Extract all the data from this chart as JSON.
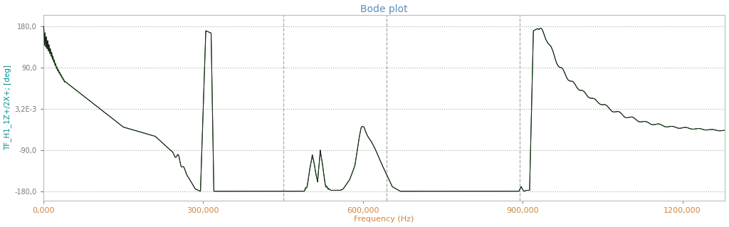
{
  "title": "Bode plot",
  "ylabel": "TF_H1_1Z+/2X+; [deg]",
  "xlabel": "Frequency (Hz)",
  "ylabel_color": "#008B8B",
  "xlabel_color": "#CD853F",
  "title_color": "#5B8DB8",
  "background_color": "#ffffff",
  "plot_bg_color": "#ffffff",
  "grid_color": "#aaaaaa",
  "line_color1": "#222222",
  "line_color2": "#006400",
  "ylim": [
    -200,
    205
  ],
  "xlim": [
    0,
    1280000
  ],
  "yticks": [
    180.0,
    90.0,
    0.0032,
    -90.0,
    -180.0
  ],
  "ytick_labels": [
    "180,0",
    "90,0",
    "3,2E-3",
    "-90,0",
    "-180,0"
  ],
  "xticks": [
    0,
    300000,
    600000,
    900000,
    1200000
  ],
  "xtick_labels": [
    "0,000",
    "300,000",
    "600,000",
    "900,000",
    "1200,000"
  ],
  "vlines": [
    450000,
    645000,
    895000
  ],
  "figsize": [
    10.24,
    3.19
  ],
  "dpi": 100
}
